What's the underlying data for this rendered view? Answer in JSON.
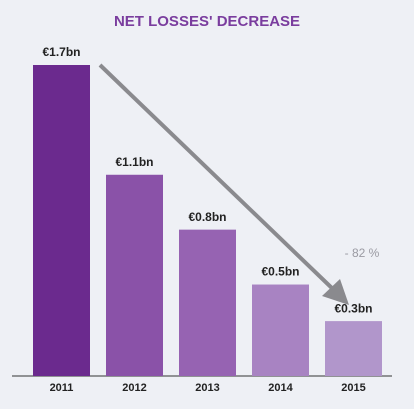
{
  "chart_data": {
    "type": "bar",
    "title": "NET LOSSES' DECREASE",
    "categories": [
      "2011",
      "2012",
      "2013",
      "2014",
      "2015"
    ],
    "values": [
      1.7,
      1.1,
      0.8,
      0.5,
      0.3
    ],
    "value_labels": [
      "€1.7bn",
      "€1.1bn",
      "€0.8bn",
      "€0.5bn",
      "€0.3bn"
    ],
    "colors": [
      "#6b2a8e",
      "#8a52a8",
      "#9663b2",
      "#a883c2",
      "#b196cb"
    ],
    "annotation": "- 82 %"
  }
}
